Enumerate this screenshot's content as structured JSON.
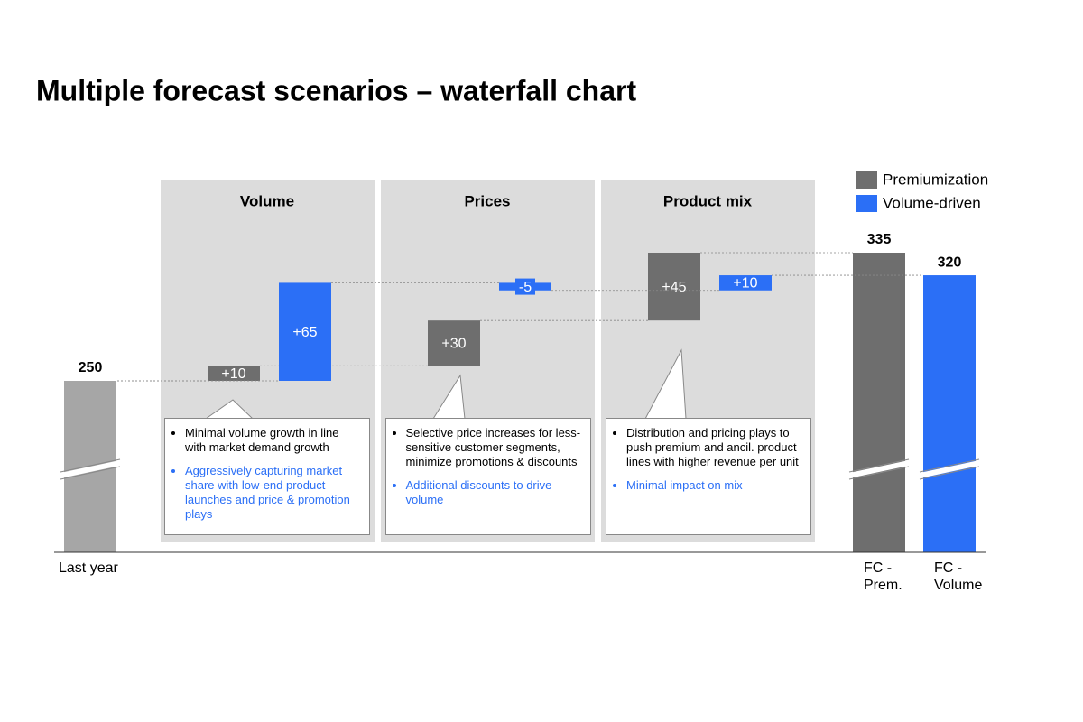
{
  "chart_data": {
    "type": "waterfall",
    "title": "Multiple forecast scenarios – waterfall chart",
    "start": 250,
    "start_label": "Last year",
    "start_color": "#a6a6a6",
    "categories": [
      "Volume",
      "Prices",
      "Product mix"
    ],
    "series": [
      {
        "name": "Premiumization",
        "color": "#6e6e6e",
        "values": [
          10,
          30,
          45
        ],
        "value_labels": [
          "+10",
          "+30",
          "+45"
        ],
        "total": 335,
        "total_label": "FC - Prem."
      },
      {
        "name": "Volume-driven",
        "color": "#2b6ff6",
        "values": [
          65,
          -5,
          10
        ],
        "value_labels": [
          "+65",
          "-5",
          "+10"
        ],
        "total": 320,
        "total_label": "FC - Volume"
      }
    ],
    "notes": [
      [
        "Minimal volume growth in line with market demand growth",
        "Aggressively capturing market share with low-end product launches and price & promotion plays"
      ],
      [
        "Selective price increases for less-sensitive customer segments, minimize promotions & discounts",
        "Additional discounts to drive volume"
      ],
      [
        "Distribution and pricing plays to push premium and ancil. product lines with higher revenue per unit",
        "Minimal impact on mix"
      ]
    ],
    "note_colors": [
      "#000000",
      "#2b6ff6"
    ],
    "legend": "top-right"
  }
}
